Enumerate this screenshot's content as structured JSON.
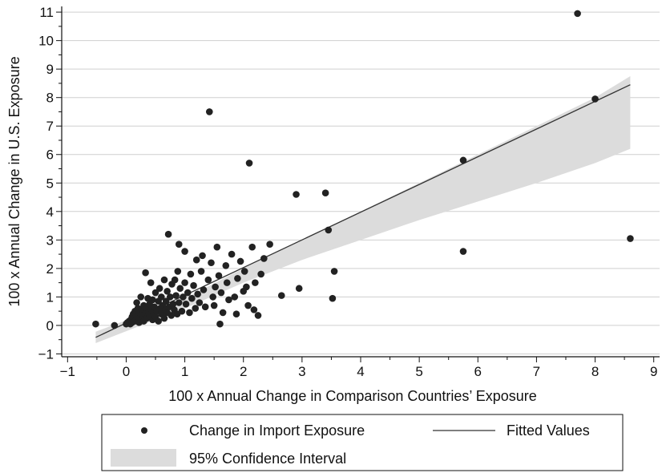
{
  "chart_data": {
    "type": "scatter",
    "xlabel": "100 x Annual Change in Comparison Countries’ Exposure",
    "ylabel": "100 x Annual Change in U.S. Exposure",
    "xlim": [
      -1.1,
      9.1
    ],
    "ylim": [
      -1.1,
      11.2
    ],
    "x_ticks": [
      "-1",
      "0",
      "1",
      "2",
      "3",
      "4",
      "5",
      "6",
      "7",
      "8",
      "9"
    ],
    "y_ticks": [
      "-1",
      "0",
      "1",
      "2",
      "3",
      "4",
      "5",
      "6",
      "7",
      "8",
      "9",
      "10",
      "11"
    ],
    "grid": true,
    "legend_position": "bottom",
    "colors": {
      "points": "#222222",
      "fit_line": "#333333",
      "ci_band": "#dcdcdc"
    },
    "series": [
      {
        "name": "Change in Import Exposure",
        "type": "scatter",
        "points": [
          [
            -0.52,
            0.05
          ],
          [
            -0.2,
            0.0
          ],
          [
            0.0,
            0.05
          ],
          [
            0.02,
            0.1
          ],
          [
            0.05,
            0.15
          ],
          [
            0.07,
            0.05
          ],
          [
            0.08,
            0.2
          ],
          [
            0.1,
            0.3
          ],
          [
            0.1,
            0.1
          ],
          [
            0.12,
            0.4
          ],
          [
            0.13,
            0.25
          ],
          [
            0.15,
            0.15
          ],
          [
            0.15,
            0.5
          ],
          [
            0.17,
            0.35
          ],
          [
            0.18,
            0.8
          ],
          [
            0.2,
            0.3
          ],
          [
            0.2,
            0.6
          ],
          [
            0.22,
            0.1
          ],
          [
            0.22,
            0.45
          ],
          [
            0.25,
            1.0
          ],
          [
            0.25,
            0.2
          ],
          [
            0.27,
            0.55
          ],
          [
            0.28,
            0.35
          ],
          [
            0.3,
            0.7
          ],
          [
            0.3,
            0.15
          ],
          [
            0.32,
            0.4
          ],
          [
            0.33,
            1.85
          ],
          [
            0.35,
            0.25
          ],
          [
            0.35,
            0.6
          ],
          [
            0.37,
            0.95
          ],
          [
            0.38,
            0.45
          ],
          [
            0.4,
            0.3
          ],
          [
            0.4,
            0.75
          ],
          [
            0.42,
            1.5
          ],
          [
            0.43,
            0.55
          ],
          [
            0.45,
            0.2
          ],
          [
            0.45,
            0.9
          ],
          [
            0.47,
            0.4
          ],
          [
            0.48,
            0.65
          ],
          [
            0.5,
            1.15
          ],
          [
            0.5,
            0.3
          ],
          [
            0.52,
            0.5
          ],
          [
            0.55,
            0.85
          ],
          [
            0.55,
            0.15
          ],
          [
            0.57,
            1.3
          ],
          [
            0.58,
            0.6
          ],
          [
            0.6,
            0.4
          ],
          [
            0.6,
            1.0
          ],
          [
            0.62,
            0.7
          ],
          [
            0.65,
            0.25
          ],
          [
            0.65,
            1.6
          ],
          [
            0.67,
            0.55
          ],
          [
            0.68,
            0.85
          ],
          [
            0.7,
            1.2
          ],
          [
            0.7,
            0.45
          ],
          [
            0.72,
            3.2
          ],
          [
            0.73,
            0.65
          ],
          [
            0.75,
            1.0
          ],
          [
            0.77,
            0.35
          ],
          [
            0.78,
            1.45
          ],
          [
            0.8,
            0.75
          ],
          [
            0.82,
            0.55
          ],
          [
            0.83,
            1.6
          ],
          [
            0.85,
            1.05
          ],
          [
            0.87,
            0.4
          ],
          [
            0.88,
            1.9
          ],
          [
            0.9,
            2.85
          ],
          [
            0.9,
            0.8
          ],
          [
            0.92,
            1.3
          ],
          [
            0.95,
            0.5
          ],
          [
            0.97,
            1.0
          ],
          [
            1.0,
            2.6
          ],
          [
            1.0,
            1.5
          ],
          [
            1.02,
            0.75
          ],
          [
            1.05,
            1.15
          ],
          [
            1.08,
            0.45
          ],
          [
            1.1,
            1.8
          ],
          [
            1.12,
            0.95
          ],
          [
            1.15,
            1.4
          ],
          [
            1.18,
            0.6
          ],
          [
            1.2,
            2.3
          ],
          [
            1.22,
            1.1
          ],
          [
            1.25,
            0.8
          ],
          [
            1.28,
            1.9
          ],
          [
            1.3,
            2.45
          ],
          [
            1.32,
            1.25
          ],
          [
            1.35,
            0.65
          ],
          [
            1.4,
            1.6
          ],
          [
            1.42,
            7.5
          ],
          [
            1.45,
            2.2
          ],
          [
            1.48,
            1.0
          ],
          [
            1.5,
            0.7
          ],
          [
            1.52,
            1.35
          ],
          [
            1.55,
            2.75
          ],
          [
            1.58,
            1.75
          ],
          [
            1.6,
            0.05
          ],
          [
            1.62,
            1.15
          ],
          [
            1.65,
            0.45
          ],
          [
            1.7,
            2.1
          ],
          [
            1.72,
            1.5
          ],
          [
            1.75,
            0.9
          ],
          [
            1.8,
            2.5
          ],
          [
            1.85,
            1.0
          ],
          [
            1.88,
            0.4
          ],
          [
            1.9,
            1.65
          ],
          [
            1.95,
            2.25
          ],
          [
            2.0,
            1.2
          ],
          [
            2.02,
            1.9
          ],
          [
            2.05,
            1.35
          ],
          [
            2.08,
            0.7
          ],
          [
            2.1,
            5.7
          ],
          [
            2.15,
            2.75
          ],
          [
            2.18,
            0.55
          ],
          [
            2.2,
            1.5
          ],
          [
            2.25,
            0.35
          ],
          [
            2.3,
            1.8
          ],
          [
            2.35,
            2.35
          ],
          [
            2.45,
            2.85
          ],
          [
            2.65,
            1.05
          ],
          [
            2.9,
            4.6
          ],
          [
            2.95,
            1.3
          ],
          [
            3.4,
            4.65
          ],
          [
            3.45,
            3.35
          ],
          [
            3.52,
            0.95
          ],
          [
            3.55,
            1.9
          ],
          [
            5.75,
            5.8
          ],
          [
            5.75,
            2.6
          ],
          [
            7.7,
            10.95
          ],
          [
            8.0,
            7.95
          ],
          [
            8.6,
            3.05
          ]
        ]
      },
      {
        "name": "Fitted Values",
        "type": "line",
        "x": [
          -0.52,
          8.6
        ],
        "y": [
          -0.42,
          8.45
        ]
      },
      {
        "name": "95% Confidence Interval",
        "type": "band",
        "x": [
          -0.52,
          1.0,
          2.0,
          3.0,
          4.0,
          5.0,
          6.0,
          7.0,
          8.0,
          8.6
        ],
        "lower": [
          -0.62,
          0.6,
          1.5,
          2.3,
          3.0,
          3.7,
          4.35,
          5.0,
          5.7,
          6.2
        ],
        "upper": [
          -0.22,
          0.95,
          2.0,
          3.0,
          4.0,
          5.0,
          6.0,
          7.0,
          8.0,
          8.75
        ]
      }
    ],
    "legend": {
      "entries": [
        "Change in Import Exposure",
        "Fitted Values",
        "95% Confidence Interval"
      ]
    }
  }
}
